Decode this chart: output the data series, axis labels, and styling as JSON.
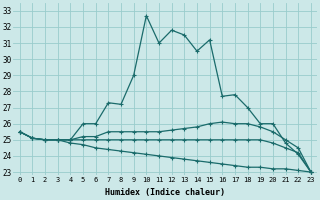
{
  "xlabel": "Humidex (Indice chaleur)",
  "ylabel": "",
  "background_color": "#cce8e8",
  "grid_color": "#99cccc",
  "line_color": "#1a6b6b",
  "xlim": [
    -0.5,
    23.5
  ],
  "ylim": [
    22.8,
    33.5
  ],
  "yticks": [
    23,
    24,
    25,
    26,
    27,
    28,
    29,
    30,
    31,
    32,
    33
  ],
  "xticks": [
    0,
    1,
    2,
    3,
    4,
    5,
    6,
    7,
    8,
    9,
    10,
    11,
    12,
    13,
    14,
    15,
    16,
    17,
    18,
    19,
    20,
    21,
    22,
    23
  ],
  "series": [
    {
      "x": [
        0,
        1,
        2,
        3,
        4,
        5,
        6,
        7,
        8,
        9,
        10,
        11,
        12,
        13,
        14,
        15,
        16,
        17,
        18,
        19,
        20,
        21,
        22,
        23
      ],
      "y": [
        25.5,
        25.1,
        25.0,
        25.0,
        25.0,
        26.0,
        26.0,
        27.3,
        27.2,
        29.0,
        32.7,
        31.0,
        31.8,
        31.5,
        30.5,
        31.2,
        27.7,
        27.8,
        27.0,
        26.0,
        26.0,
        24.8,
        24.1,
        23.0
      ]
    },
    {
      "x": [
        0,
        1,
        2,
        3,
        4,
        5,
        6,
        7,
        8,
        9,
        10,
        11,
        12,
        13,
        14,
        15,
        16,
        17,
        18,
        19,
        20,
        21,
        22,
        23
      ],
      "y": [
        25.5,
        25.1,
        25.0,
        25.0,
        25.0,
        25.2,
        25.2,
        25.5,
        25.5,
        25.5,
        25.5,
        25.5,
        25.6,
        25.7,
        25.8,
        26.0,
        26.1,
        26.0,
        26.0,
        25.8,
        25.5,
        25.0,
        24.5,
        23.0
      ]
    },
    {
      "x": [
        0,
        1,
        2,
        3,
        4,
        5,
        6,
        7,
        8,
        9,
        10,
        11,
        12,
        13,
        14,
        15,
        16,
        17,
        18,
        19,
        20,
        21,
        22,
        23
      ],
      "y": [
        25.5,
        25.1,
        25.0,
        25.0,
        25.0,
        25.0,
        25.0,
        25.0,
        25.0,
        25.0,
        25.0,
        25.0,
        25.0,
        25.0,
        25.0,
        25.0,
        25.0,
        25.0,
        25.0,
        25.0,
        24.8,
        24.5,
        24.2,
        23.0
      ]
    },
    {
      "x": [
        0,
        1,
        2,
        3,
        4,
        5,
        6,
        7,
        8,
        9,
        10,
        11,
        12,
        13,
        14,
        15,
        16,
        17,
        18,
        19,
        20,
        21,
        22,
        23
      ],
      "y": [
        25.5,
        25.1,
        25.0,
        25.0,
        24.8,
        24.7,
        24.5,
        24.4,
        24.3,
        24.2,
        24.1,
        24.0,
        23.9,
        23.8,
        23.7,
        23.6,
        23.5,
        23.4,
        23.3,
        23.3,
        23.2,
        23.2,
        23.1,
        23.0
      ]
    }
  ]
}
